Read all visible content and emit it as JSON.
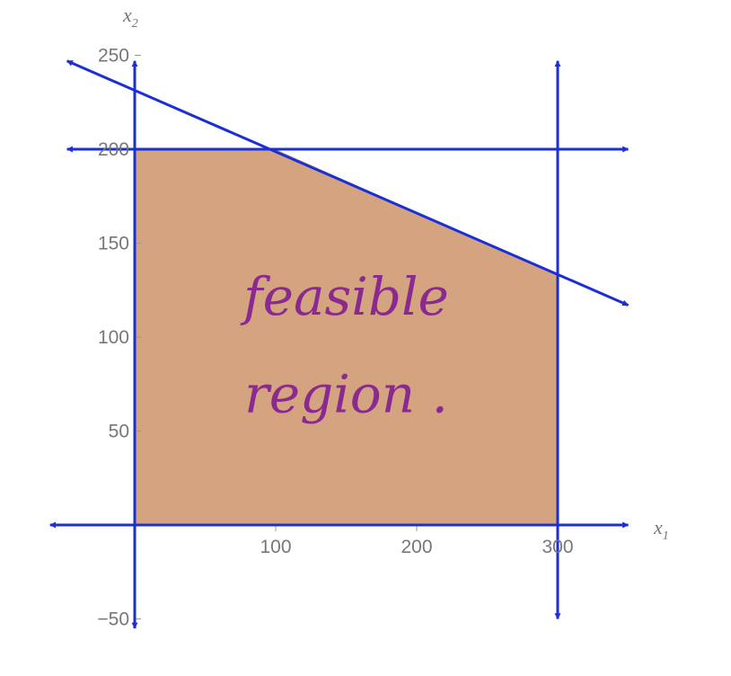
{
  "chart_data": {
    "type": "area",
    "title": "",
    "xlabel": {
      "main": "x",
      "sub": "1"
    },
    "ylabel": {
      "main": "x",
      "sub": "2"
    },
    "xlim": [
      -60,
      350
    ],
    "ylim": [
      -55,
      255
    ],
    "x_ticks": [
      {
        "value": 100,
        "label": "100"
      },
      {
        "value": 200,
        "label": "200"
      },
      {
        "value": 300,
        "label": "300"
      }
    ],
    "y_ticks": [
      {
        "value": -50,
        "label": "−50"
      },
      {
        "value": 50,
        "label": "50"
      },
      {
        "value": 100,
        "label": "100"
      },
      {
        "value": 150,
        "label": "150"
      },
      {
        "value": 200,
        "label": "200"
      },
      {
        "value": 250,
        "label": "250"
      }
    ],
    "grid": false,
    "feasible_region": {
      "vertices": [
        [
          0,
          0
        ],
        [
          300,
          0
        ],
        [
          300,
          133
        ],
        [
          100,
          200
        ],
        [
          0,
          200
        ]
      ],
      "color": "#d4a37f"
    },
    "constraint_lines": [
      {
        "kind": "horizontal",
        "y": 200,
        "x_range": [
          -48,
          350
        ]
      },
      {
        "kind": "vertical",
        "x": 300,
        "y_range": [
          -50,
          247
        ]
      },
      {
        "kind": "sloped",
        "x_range": [
          -48,
          350
        ],
        "y_range": [
          247,
          117
        ]
      }
    ],
    "line_color": "#1a2fd6",
    "annotations": [
      {
        "text": "feasible",
        "x": 150,
        "y": 112
      },
      {
        "text": "region .",
        "x": 150,
        "y": 60
      }
    ]
  }
}
